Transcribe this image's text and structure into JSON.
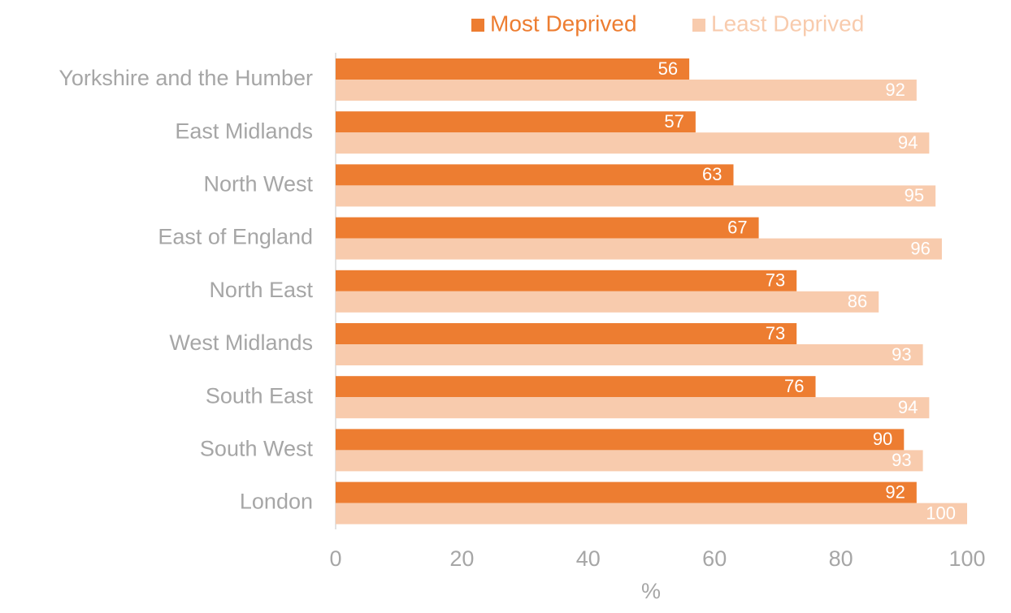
{
  "chart_data": {
    "type": "bar",
    "orientation": "horizontal",
    "categories": [
      "Yorkshire and the Humber",
      "East Midlands",
      "North West",
      "East of England",
      "North East",
      "West Midlands",
      "South East",
      "South West",
      "London"
    ],
    "series": [
      {
        "name": "Most Deprived",
        "color": "#ed7d31",
        "values": [
          56,
          57,
          63,
          67,
          73,
          73,
          76,
          90,
          92
        ]
      },
      {
        "name": "Least Deprived",
        "color": "#f8cbad",
        "values": [
          92,
          94,
          95,
          96,
          86,
          93,
          94,
          93,
          100
        ]
      }
    ],
    "xlabel": "%",
    "xlim": [
      0,
      100
    ],
    "xticks": [
      0,
      20,
      40,
      60,
      80,
      100
    ],
    "grid": false,
    "legend": "top",
    "data_labels": true
  }
}
